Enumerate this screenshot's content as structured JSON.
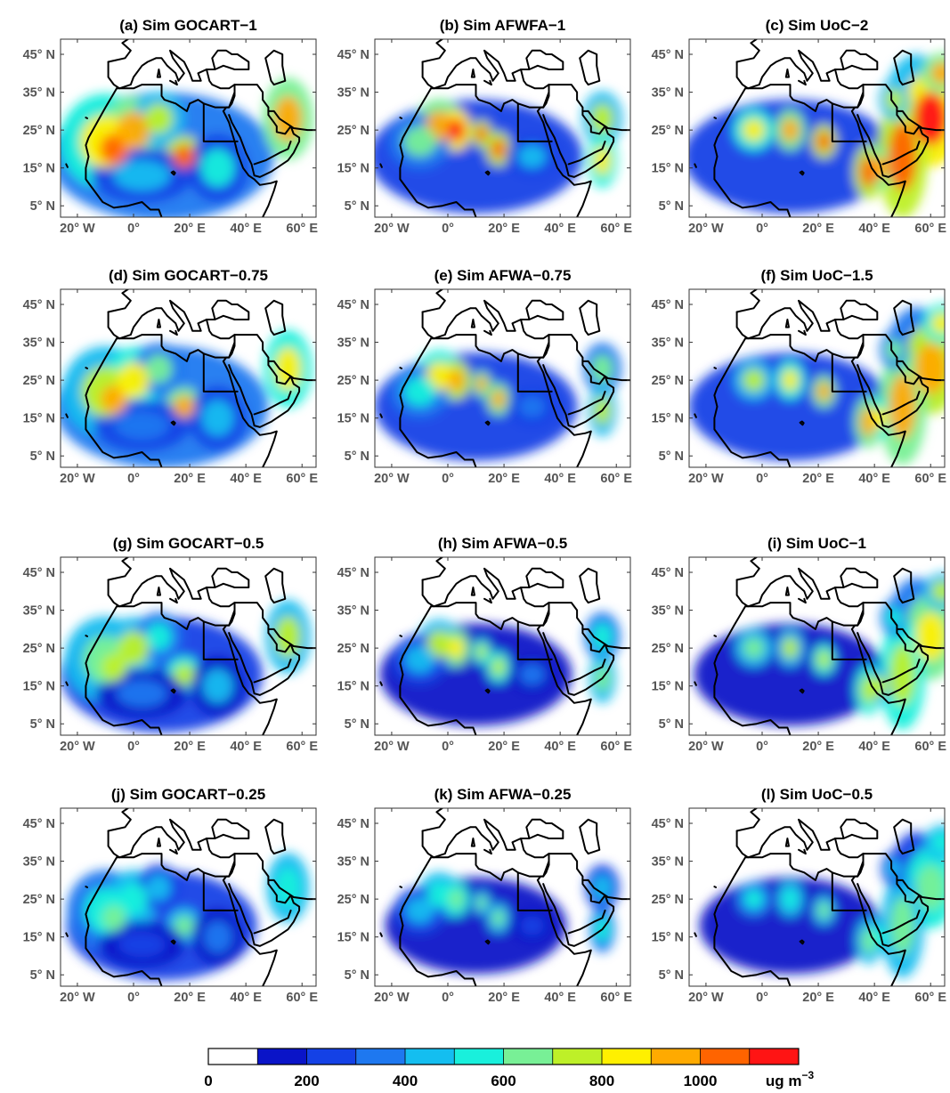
{
  "panels": [
    {
      "title": "(a) Sim GOCART−1",
      "scheme": "gocart",
      "level": 1.0
    },
    {
      "title": "(b) Sim AFWFA−1",
      "scheme": "afwa",
      "level": 1.0
    },
    {
      "title": "(c) Sim UoC−2",
      "scheme": "uoc",
      "level": 1.0
    },
    {
      "title": "(d) Sim GOCART−0.75",
      "scheme": "gocart",
      "level": 0.75
    },
    {
      "title": "(e) Sim AFWA−0.75",
      "scheme": "afwa",
      "level": 0.75
    },
    {
      "title": "(f) Sim UoC−1.5",
      "scheme": "uoc",
      "level": 0.75
    },
    {
      "title": "(g) Sim GOCART−0.5",
      "scheme": "gocart",
      "level": 0.5
    },
    {
      "title": "(h) Sim AFWA−0.5",
      "scheme": "afwa",
      "level": 0.5
    },
    {
      "title": "(i) Sim UoC−1",
      "scheme": "uoc",
      "level": 0.5
    },
    {
      "title": "(j) Sim GOCART−0.25",
      "scheme": "gocart",
      "level": 0.25
    },
    {
      "title": "(k) Sim AFWA−0.25",
      "scheme": "afwa",
      "level": 0.25
    },
    {
      "title": "(l) Sim UoC−0.5",
      "scheme": "uoc",
      "level": 0.25
    }
  ],
  "axes": {
    "lat_ticks": [
      "45° N",
      "35° N",
      "25° N",
      "15° N",
      "5° N"
    ],
    "lat_values": [
      45,
      35,
      25,
      15,
      5
    ],
    "lon_ticks": [
      "20° W",
      "0°",
      "20° E",
      "40° E",
      "60° E"
    ],
    "lon_values": [
      -20,
      0,
      20,
      40,
      60
    ],
    "lon_range": [
      -26,
      65
    ],
    "lat_range": [
      2,
      49
    ]
  },
  "colorbar": {
    "tick_labels": [
      "0",
      "200",
      "400",
      "600",
      "800",
      "1000"
    ],
    "tick_values": [
      0,
      200,
      400,
      600,
      800,
      1000
    ],
    "unit_label": "ug m",
    "unit_exponent": "−3",
    "range": [
      0,
      1200
    ],
    "colors": [
      "#ffffff",
      "#0a14c8",
      "#1441e6",
      "#1e78f0",
      "#14bef0",
      "#19f0dc",
      "#78f096",
      "#bef028",
      "#fff000",
      "#ffaa00",
      "#ff6400",
      "#ff1414"
    ]
  }
}
